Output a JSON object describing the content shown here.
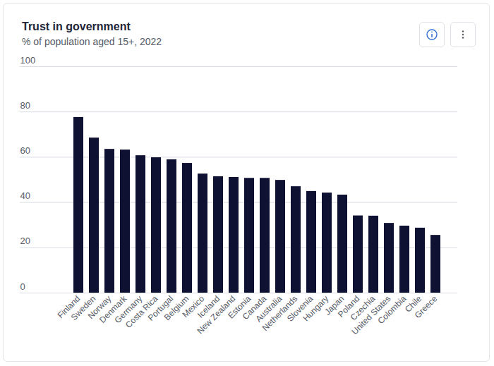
{
  "chart_data": {
    "type": "bar",
    "title": "Trust in government",
    "subtitle": "% of population aged 15+, 2022",
    "categories": [
      "Finland",
      "Sweden",
      "Norway",
      "Denmark",
      "Germany",
      "Costa Rica",
      "Portugal",
      "Belgium",
      "Mexico",
      "Iceland",
      "New Zealand",
      "Estonia",
      "Canada",
      "Australia",
      "Netherlands",
      "Slovenia",
      "Hungary",
      "Japan",
      "Poland",
      "Czechia",
      "United States",
      "Colombia",
      "Chile",
      "Greece"
    ],
    "values": [
      77.6,
      68.5,
      63.5,
      63.2,
      60.7,
      59.8,
      58.9,
      57.3,
      52.6,
      51.4,
      51.1,
      50.7,
      50.7,
      49.8,
      47.0,
      44.9,
      44.2,
      43.3,
      34.1,
      34.0,
      30.8,
      29.6,
      28.7,
      25.5
    ],
    "color": "#0f1133",
    "ylim": [
      0,
      100
    ],
    "yticks": [
      0,
      20,
      40,
      60,
      80,
      100
    ],
    "grid": true
  }
}
